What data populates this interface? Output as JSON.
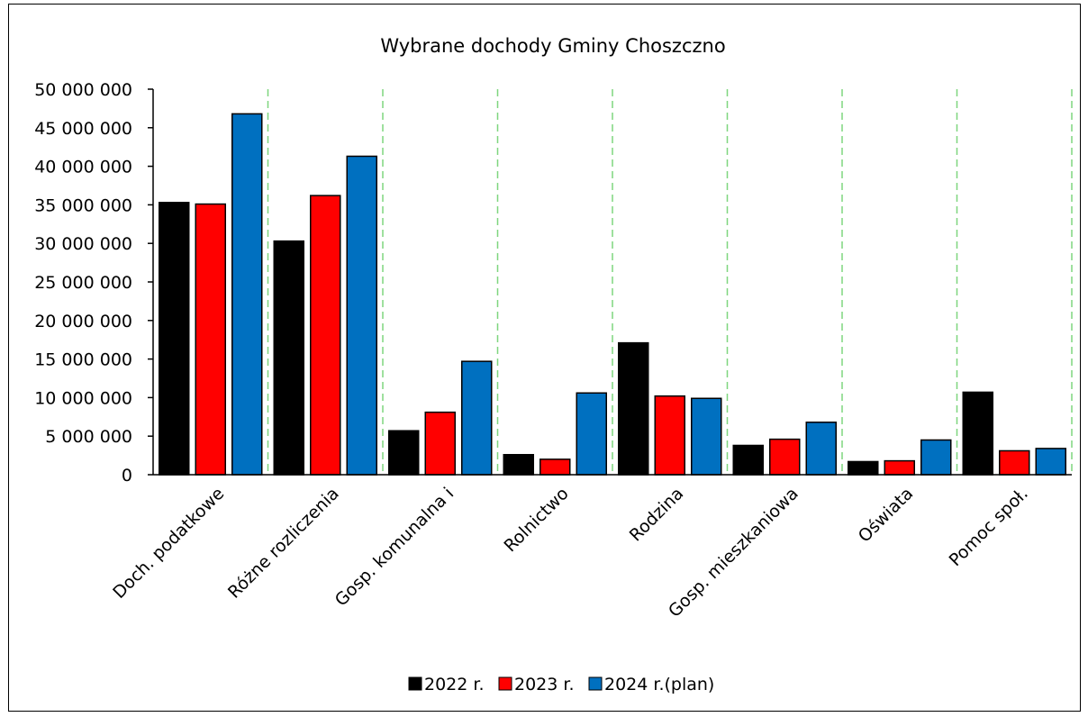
{
  "chart_data": {
    "type": "bar",
    "title": "Wybrane dochody Gminy Choszczno",
    "xlabel": "",
    "ylabel": "",
    "ylim": [
      0,
      50000000
    ],
    "yticks": [
      0,
      5000000,
      10000000,
      15000000,
      20000000,
      25000000,
      30000000,
      35000000,
      40000000,
      45000000,
      50000000
    ],
    "ytick_labels": [
      "0",
      "5 000 000",
      "10 000 000",
      "15 000 000",
      "20 000 000",
      "25 000 000",
      "30 000 000",
      "35 000 000",
      "40 000 000",
      "45 000 000",
      "50 000 000"
    ],
    "categories": [
      "Doch. podatkowe",
      "Różne rozliczenia",
      "Gosp. komunalna i",
      "Rolnictwo",
      "Rodzina",
      "Gosp.  mieszkaniowa",
      "Oświata",
      "Pomoc społ."
    ],
    "series": [
      {
        "name": "2022 r.",
        "color": "#000000",
        "values": [
          35300000,
          30300000,
          5700000,
          2600000,
          17100000,
          3800000,
          1700000,
          10700000
        ]
      },
      {
        "name": "2023 r.",
        "color": "#ff0000",
        "values": [
          35100000,
          36200000,
          8100000,
          2000000,
          10200000,
          4600000,
          1800000,
          3100000
        ]
      },
      {
        "name": "2024 r.(plan)",
        "color": "#0070c0",
        "values": [
          46800000,
          41300000,
          14700000,
          10600000,
          9900000,
          6800000,
          4500000,
          3400000
        ]
      }
    ],
    "grid": {
      "vertical": true,
      "horizontal": false,
      "color": "#7ed67e",
      "style": "dashed"
    },
    "legend": "bottom-center"
  }
}
